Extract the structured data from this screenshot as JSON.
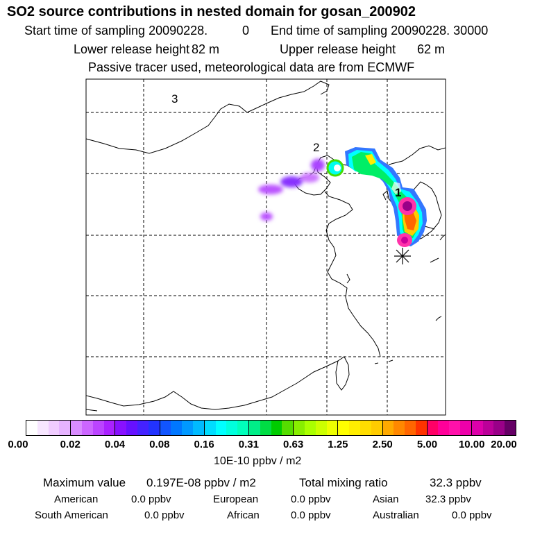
{
  "header": {
    "title": "SO2 source contributions in nested domain for gosan_200902",
    "start_label": "Start time of sampling 20090228.",
    "start_value": "0",
    "end_label": "End time of sampling 20090228. 30000",
    "lower_label": "Lower release height",
    "lower_value": "82 m",
    "upper_label": "Upper release height",
    "upper_value": "62 m",
    "note": "Passive tracer used, meteorological data are from ECMWF"
  },
  "map": {
    "markers": [
      "3",
      "2",
      "1"
    ],
    "site_symbol": "star-marker"
  },
  "colorbar": {
    "ticks": [
      "0.00",
      "0.02",
      "0.04",
      "0.08",
      "0.16",
      "0.31",
      "0.63",
      "1.25",
      "2.50",
      "5.00",
      "10.00",
      "20.00"
    ],
    "units": "10E-10 ppbv / m2",
    "segments": [
      [
        "#ffffff",
        "#f7e6ff",
        "#f0ccff",
        "#e6b3ff"
      ],
      [
        "#d98cff",
        "#cc66ff",
        "#bb44ff",
        "#aa22ff"
      ],
      [
        "#8811ff",
        "#6611ff",
        "#4422ff",
        "#2233ff"
      ],
      [
        "#1155ff",
        "#0077ff",
        "#0099ff",
        "#00bbff"
      ],
      [
        "#00ddff",
        "#00ffff",
        "#00ffdd",
        "#00ffbb"
      ],
      [
        "#00ee88",
        "#00dd44",
        "#00cc00",
        "#55dd00"
      ],
      [
        "#88ee00",
        "#aaff00",
        "#ccff00",
        "#eeff00"
      ],
      [
        "#ffff00",
        "#ffee00",
        "#ffdd00",
        "#ffcc00"
      ],
      [
        "#ffaa00",
        "#ff8800",
        "#ff6600",
        "#ff3300"
      ],
      [
        "#ff0066",
        "#ff0099",
        "#ff11aa",
        "#ee00aa"
      ],
      [
        "#dd00aa",
        "#bb0099",
        "#990088",
        "#660066"
      ]
    ]
  },
  "summary": {
    "max_label": "Maximum value",
    "max_value": "0.197E-08 ppbv / m2",
    "total_label": "Total mixing ratio",
    "total_value": "32.3 ppbv",
    "american_label": "American",
    "american_value": "0.0 ppbv",
    "european_label": "European",
    "european_value": "0.0 ppbv",
    "asian_label": "Asian",
    "asian_value": "32.3 ppbv",
    "south_american_label": "South American",
    "south_american_value": "0.0 ppbv",
    "african_label": "African",
    "african_value": "0.0 ppbv",
    "australian_label": "Australian",
    "australian_value": "0.0 ppbv"
  }
}
